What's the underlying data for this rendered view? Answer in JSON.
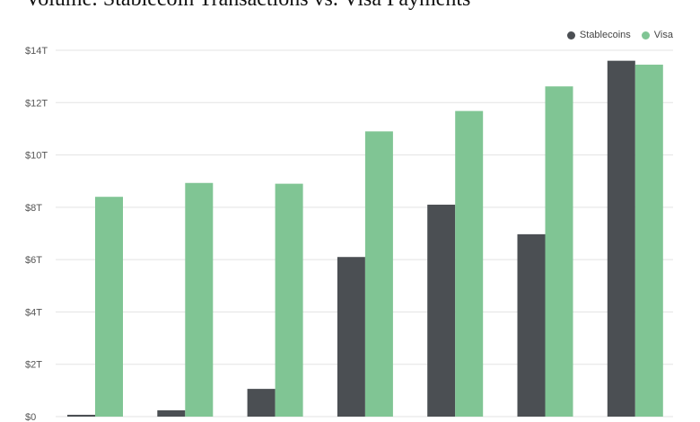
{
  "chart_data": {
    "type": "bar",
    "title": "Volume: Stablecoin Transactions vs. Visa Payments",
    "xlabel": "",
    "ylabel": "",
    "ylim": [
      0,
      14
    ],
    "yticks": [
      0,
      2,
      4,
      6,
      8,
      10,
      12,
      14
    ],
    "ytick_labels": [
      "$0",
      "$2T",
      "$4T",
      "$6T",
      "$8T",
      "$10T",
      "$12T",
      "$14T"
    ],
    "grid": true,
    "legend_position": "top-right",
    "series": [
      {
        "name": "Stablecoins",
        "color": "#4b4f53",
        "values": [
          0.07,
          0.24,
          1.06,
          6.1,
          8.1,
          6.97,
          13.6
        ]
      },
      {
        "name": "Visa",
        "color": "#80c594",
        "values": [
          8.4,
          8.93,
          8.9,
          10.9,
          11.68,
          12.62,
          13.45
        ]
      }
    ]
  }
}
